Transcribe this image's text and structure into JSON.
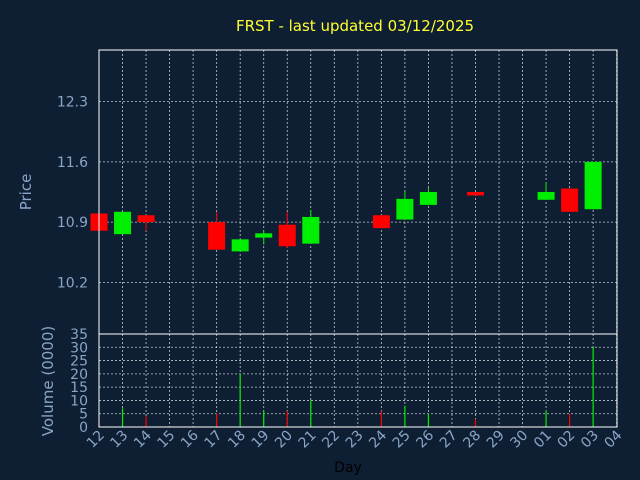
{
  "chart_data": [
    {
      "type": "candlestick",
      "title": "FRST - last updated 03/12/2025",
      "ylabel": "Price",
      "ylim": [
        9.6,
        12.9
      ],
      "yticks": [
        "12.3",
        "11.6",
        "10.9",
        "10.2"
      ],
      "grid": true,
      "up_color": "#00ee00",
      "down_color": "#ff0000",
      "candles": [
        {
          "day": "12",
          "open": 11.0,
          "high": 11.0,
          "low": 10.8,
          "close": 10.8
        },
        {
          "day": "13",
          "open": 10.76,
          "high": 11.02,
          "low": 10.76,
          "close": 11.02
        },
        {
          "day": "14",
          "open": 10.98,
          "high": 10.98,
          "low": 10.8,
          "close": 10.9
        },
        {
          "day": "17",
          "open": 10.9,
          "high": 11.02,
          "low": 10.58,
          "close": 10.58
        },
        {
          "day": "18",
          "open": 10.56,
          "high": 10.7,
          "low": 10.56,
          "close": 10.7
        },
        {
          "day": "19",
          "open": 10.72,
          "high": 10.8,
          "low": 10.64,
          "close": 10.77
        },
        {
          "day": "20",
          "open": 10.87,
          "high": 11.02,
          "low": 10.6,
          "close": 10.62
        },
        {
          "day": "21",
          "open": 10.65,
          "high": 11.04,
          "low": 10.65,
          "close": 10.96
        },
        {
          "day": "24",
          "open": 10.98,
          "high": 10.98,
          "low": 10.83,
          "close": 10.83
        },
        {
          "day": "25",
          "open": 10.93,
          "high": 11.26,
          "low": 10.93,
          "close": 11.17
        },
        {
          "day": "26",
          "open": 11.1,
          "high": 11.3,
          "low": 11.1,
          "close": 11.25
        },
        {
          "day": "28",
          "open": 11.25,
          "high": 11.25,
          "low": 11.21,
          "close": 11.21
        },
        {
          "day": "01",
          "open": 11.16,
          "high": 11.36,
          "low": 11.16,
          "close": 11.25
        },
        {
          "day": "02",
          "open": 11.29,
          "high": 11.29,
          "low": 11.02,
          "close": 11.02
        },
        {
          "day": "03",
          "open": 11.05,
          "high": 11.6,
          "low": 11.05,
          "close": 11.6
        }
      ]
    },
    {
      "type": "bar",
      "ylabel": "Volume (0000)",
      "xlabel": "Day",
      "ylim": [
        0,
        35
      ],
      "yticks": [
        "35",
        "30",
        "25",
        "20",
        "15",
        "10",
        "5",
        "0"
      ],
      "x_ticks": [
        "12",
        "13",
        "14",
        "15",
        "16",
        "17",
        "18",
        "19",
        "20",
        "21",
        "22",
        "23",
        "24",
        "25",
        "26",
        "27",
        "28",
        "29",
        "30",
        "01",
        "02",
        "03",
        "04"
      ],
      "bars": [
        {
          "day": "12",
          "value": 2,
          "color": "#ff0000"
        },
        {
          "day": "13",
          "value": 7,
          "color": "#00ee00"
        },
        {
          "day": "14",
          "value": 4,
          "color": "#ff0000"
        },
        {
          "day": "17",
          "value": 5,
          "color": "#ff0000"
        },
        {
          "day": "18",
          "value": 20,
          "color": "#00ee00"
        },
        {
          "day": "19",
          "value": 6,
          "color": "#00ee00"
        },
        {
          "day": "20",
          "value": 6,
          "color": "#ff0000"
        },
        {
          "day": "21",
          "value": 10,
          "color": "#00ee00"
        },
        {
          "day": "24",
          "value": 6,
          "color": "#ff0000"
        },
        {
          "day": "25",
          "value": 8,
          "color": "#00ee00"
        },
        {
          "day": "26",
          "value": 5,
          "color": "#00ee00"
        },
        {
          "day": "28",
          "value": 3,
          "color": "#ff0000"
        },
        {
          "day": "01",
          "value": 6,
          "color": "#00ee00"
        },
        {
          "day": "02",
          "value": 5,
          "color": "#ff0000"
        },
        {
          "day": "03",
          "value": 30,
          "color": "#00ee00"
        }
      ]
    }
  ]
}
